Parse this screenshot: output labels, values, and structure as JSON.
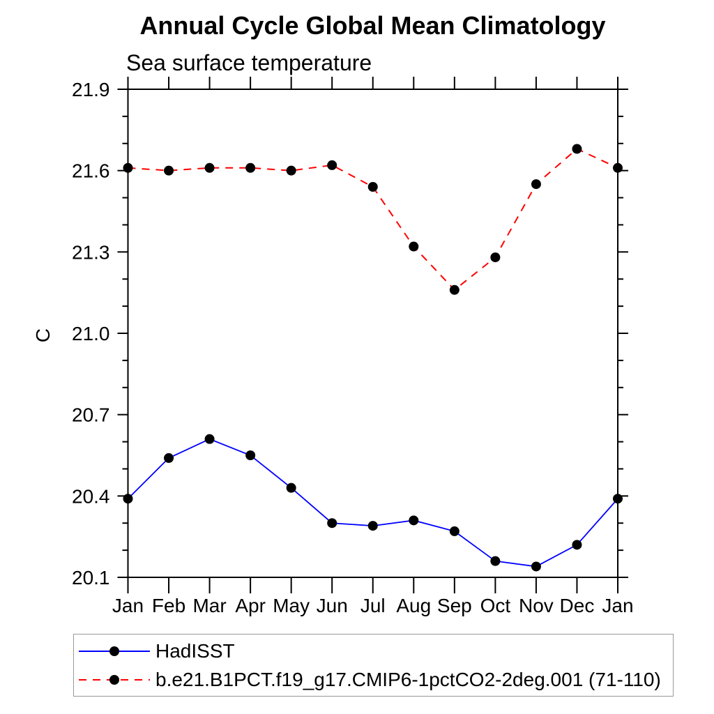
{
  "page": {
    "title": "Annual Cycle Global Mean Climatology",
    "subtitle": "Sea surface temperature",
    "y_axis_label": "C"
  },
  "colors": {
    "hadisst_line": "#0000ff",
    "model_line": "#ff0000",
    "marker": "#000000",
    "axis": "#000000",
    "text": "#000000",
    "legend_border": "#999999"
  },
  "legend": {
    "items": [
      {
        "label": "HadISST",
        "line_style": "solid",
        "color": "#0000ff"
      },
      {
        "label": "b.e21.B1PCT.f19_g17.CMIP6-1pctCO2-2deg.001 (71-110)",
        "line_style": "dashed",
        "color": "#ff0000"
      }
    ]
  },
  "chart_data": {
    "type": "line",
    "title": "Annual Cycle Global Mean Climatology",
    "subtitle": "Sea surface temperature",
    "xlabel": "",
    "ylabel": "C",
    "x_tick_labels": [
      "Jan",
      "Feb",
      "Mar",
      "Apr",
      "May",
      "Jun",
      "Jul",
      "Aug",
      "Sep",
      "Oct",
      "Nov",
      "Dec",
      "Jan"
    ],
    "ylim": [
      20.1,
      21.9
    ],
    "y_major_ticks": [
      20.1,
      20.4,
      20.7,
      21.0,
      21.3,
      21.6,
      21.9
    ],
    "y_tick_labels": [
      "20.1",
      "20.4",
      "20.7",
      "21.0",
      "21.3",
      "21.6",
      "21.9"
    ],
    "y_minor_step": 0.1,
    "grid": false,
    "legend_position": "bottom-left",
    "series": [
      {
        "name": "HadISST",
        "color": "#0000ff",
        "style": "solid",
        "marker": "circle",
        "values": [
          20.39,
          20.54,
          20.61,
          20.55,
          20.43,
          20.3,
          20.29,
          20.31,
          20.27,
          20.16,
          20.14,
          20.22,
          20.39
        ]
      },
      {
        "name": "b.e21.B1PCT.f19_g17.CMIP6-1pctCO2-2deg.001 (71-110)",
        "color": "#ff0000",
        "style": "dashed",
        "marker": "circle",
        "values": [
          21.61,
          21.6,
          21.61,
          21.61,
          21.6,
          21.62,
          21.54,
          21.32,
          21.16,
          21.28,
          21.55,
          21.68,
          21.61
        ]
      }
    ]
  }
}
